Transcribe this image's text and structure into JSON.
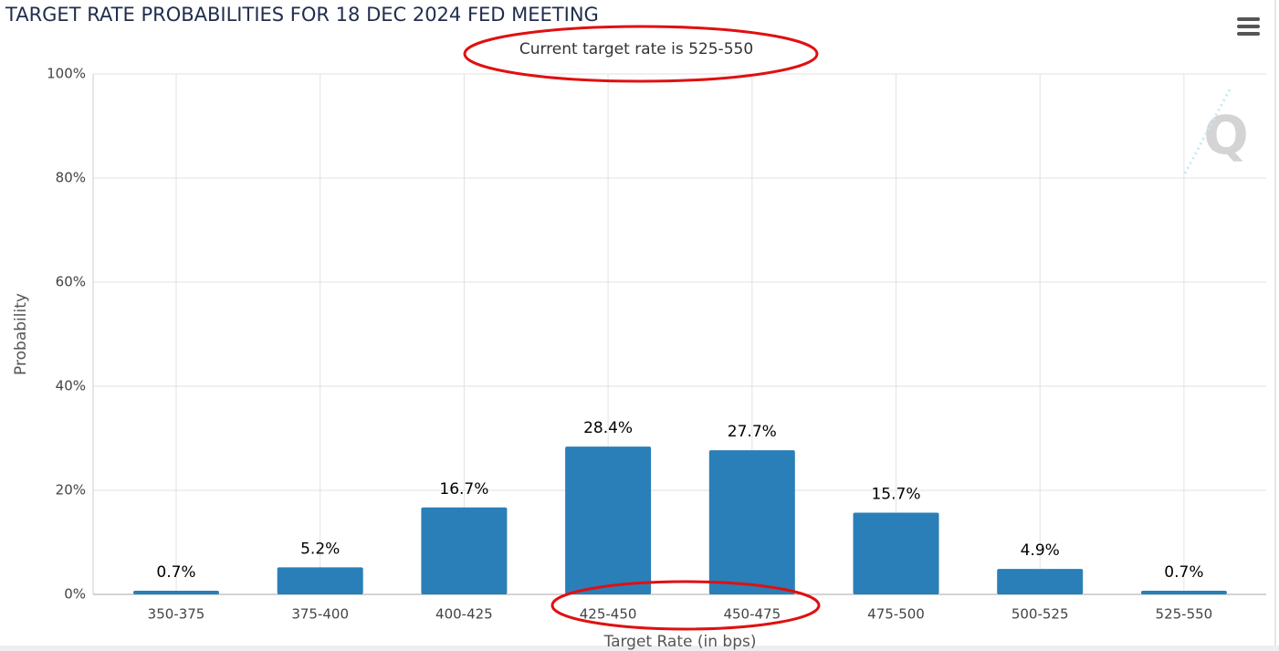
{
  "chart_data": {
    "type": "bar",
    "title": "TARGET RATE PROBABILITIES FOR 18 DEC 2024 FED MEETING",
    "subtitle": "Current target rate is 525-550",
    "x_label": "Target Rate (in bps)",
    "y_label": "Probability",
    "categories": [
      "350-375",
      "375-400",
      "400-425",
      "425-450",
      "450-475",
      "475-500",
      "500-525",
      "525-550"
    ],
    "values": [
      0.7,
      5.2,
      16.7,
      28.4,
      27.7,
      15.7,
      4.9,
      0.7
    ],
    "value_labels": [
      "0.7%",
      "5.2%",
      "16.7%",
      "28.4%",
      "27.7%",
      "15.7%",
      "4.9%",
      "0.7%"
    ],
    "color": "#2a7fb8",
    "ylim": [
      0,
      100
    ],
    "yticks": [
      {
        "value": 0,
        "label": "0%"
      },
      {
        "value": 20,
        "label": "20%"
      },
      {
        "value": 40,
        "label": "40%"
      },
      {
        "value": 60,
        "label": "60%"
      },
      {
        "value": 80,
        "label": "80%"
      },
      {
        "value": 100,
        "label": "100%"
      }
    ],
    "grid": true
  }
}
